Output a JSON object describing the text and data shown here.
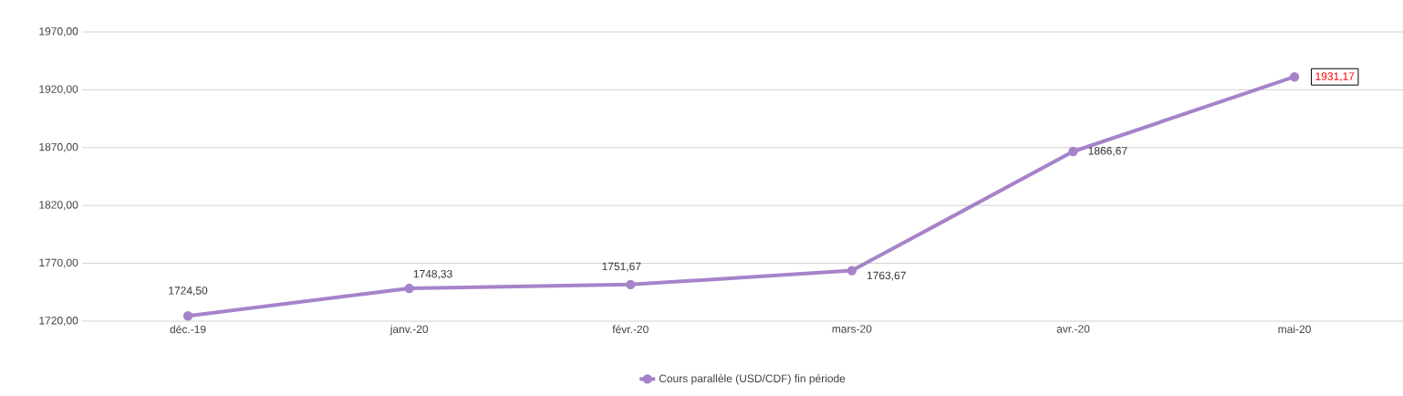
{
  "chart_data": {
    "type": "line",
    "categories": [
      "déc.-19",
      "janv.-20",
      "févr.-20",
      "mars-20",
      "avr.-20",
      "mai-20"
    ],
    "series": [
      {
        "name": "Cours parallèle (USD/CDF) fin période",
        "color": "#a683c9",
        "values": [
          1724.5,
          1748.33,
          1751.67,
          1763.67,
          1866.67,
          1931.17
        ],
        "value_labels": [
          "1724,50",
          "1748,33",
          "1751,67",
          "1763,67",
          "1866,67",
          null
        ]
      }
    ],
    "annotations": [
      {
        "text": "1931,17",
        "x": "mai-20",
        "y": 1931.17
      }
    ],
    "ylim": [
      1720,
      1970
    ],
    "yticks": [
      {
        "value": 1720,
        "label": "1720,00"
      },
      {
        "value": 1770,
        "label": "1770,00"
      },
      {
        "value": 1820,
        "label": "1820,00"
      },
      {
        "value": 1870,
        "label": "1870,00"
      },
      {
        "value": 1920,
        "label": "1920,00"
      },
      {
        "value": 1970,
        "label": "1970,00"
      }
    ],
    "grid": "y",
    "legend": "bottom",
    "marker": "circle",
    "line_style": "solid"
  }
}
